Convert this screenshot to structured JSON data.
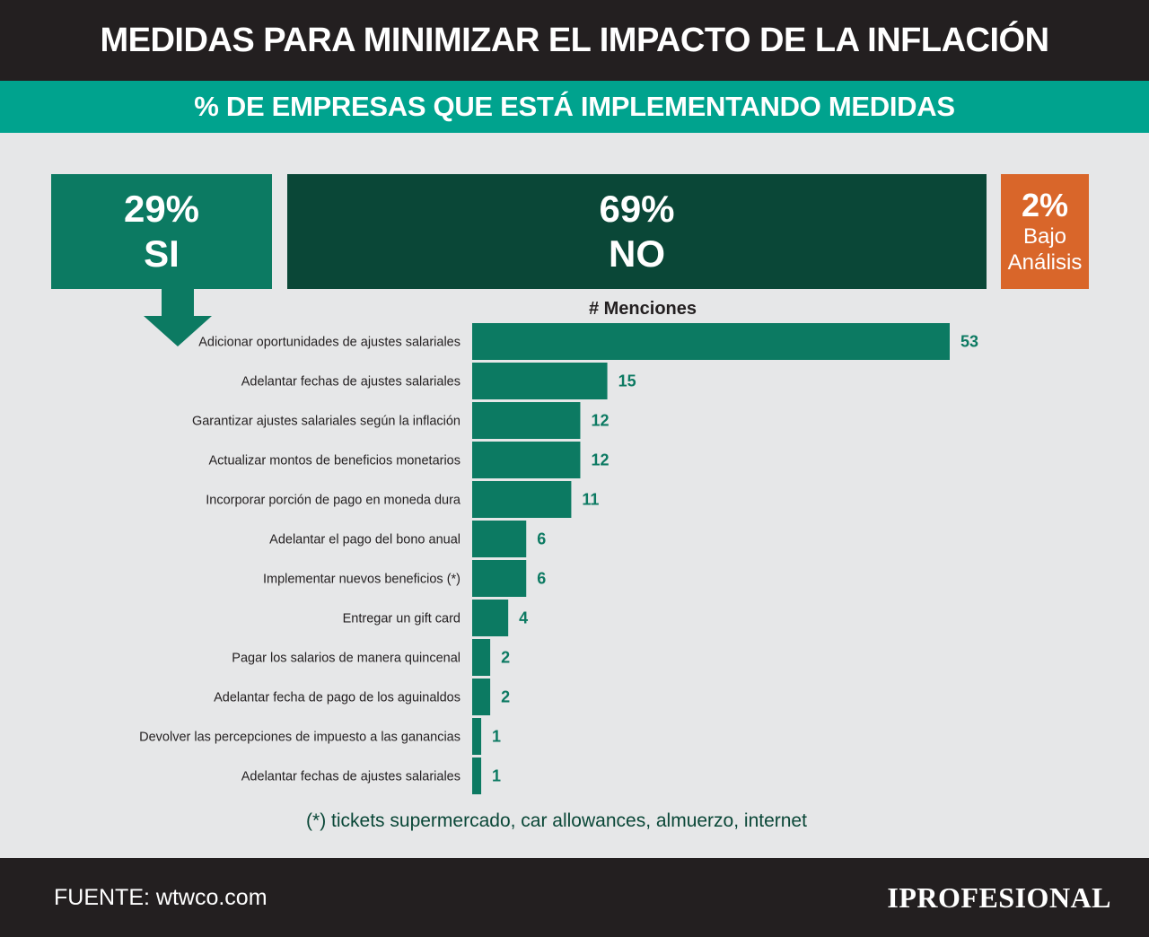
{
  "header": {
    "title": "MEDIDAS PARA MINIMIZAR EL IMPACTO DE LA INFLACIÓN"
  },
  "subheader": {
    "title": "% DE EMPRESAS QUE ESTÁ IMPLEMENTANDO MEDIDAS"
  },
  "summary": {
    "si": {
      "pct": "29%",
      "label": "SI"
    },
    "no": {
      "pct": "69%",
      "label": "NO"
    },
    "bajo": {
      "pct": "2%",
      "label_line1": "Bajo",
      "label_line2": "Análisis"
    }
  },
  "colors": {
    "si": "#0c7a62",
    "no": "#0a4737",
    "bajo": "#d9662a",
    "bar": "#0c7a62",
    "header": "#231f20",
    "subheader": "#00a38e",
    "background": "#e6e7e8"
  },
  "chart_data": {
    "type": "bar",
    "orientation": "horizontal",
    "title": "# Menciones",
    "categories": [
      "Adicionar oportunidades de ajustes salariales",
      "Adelantar fechas de ajustes salariales",
      "Garantizar ajustes salariales según la inflación",
      "Actualizar montos de beneficios monetarios",
      "Incorporar porción de pago en moneda dura",
      "Adelantar el pago del bono anual",
      "Implementar nuevos beneficios (*)",
      "Entregar un gift card",
      "Pagar los salarios de manera quincenal",
      "Adelantar fecha de pago de los aguinaldos",
      "Devolver las percepciones de impuesto a las ganancias",
      "Adelantar fechas de ajustes salariales"
    ],
    "values": [
      53,
      15,
      12,
      12,
      11,
      6,
      6,
      4,
      2,
      2,
      1,
      1
    ],
    "grid": false
  },
  "note": "(*) tickets supermercado, car allowances, almuerzo, internet",
  "footer": {
    "source": "FUENTE: wtwco.com",
    "logo": "IPROFESIONAL"
  }
}
